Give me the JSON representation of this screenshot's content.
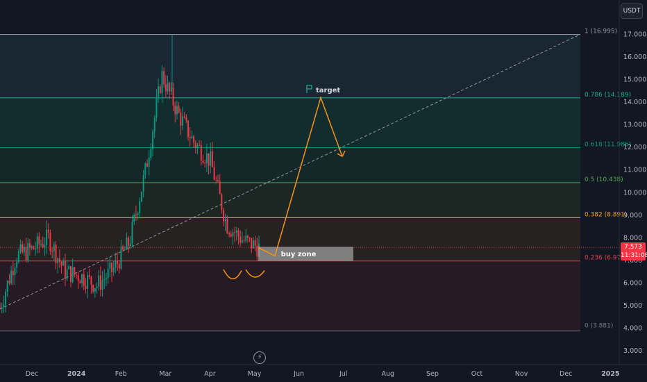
{
  "currency_button": "USDT",
  "price_badge": {
    "price": "7.573",
    "countdown": "11:31:08"
  },
  "colors": {
    "background": "#131722",
    "up": "#089981",
    "down": "#f23645",
    "arrow": "#f7931a",
    "buy_zone": "#9e9e9e"
  },
  "icons": {
    "flash": "lightning-icon",
    "flag": "flag-icon"
  },
  "annotations": {
    "target": "target",
    "buy_zone": "buy zone"
  },
  "chart_data": {
    "type": "candlestick",
    "symbol_quote": "USDT",
    "ylim": [
      2.6,
      18.2
    ],
    "y_ticks": [
      "3.000",
      "4.000",
      "5.000",
      "6.000",
      "7.000",
      "8.000",
      "9.000",
      "10.000",
      "11.000",
      "12.000",
      "13.000",
      "14.000",
      "15.000",
      "16.000",
      "17.000"
    ],
    "x_ticks": [
      "Dec",
      "2024",
      "Feb",
      "Mar",
      "Apr",
      "May",
      "Jun",
      "Jul",
      "Aug",
      "Sep",
      "Oct",
      "Nov",
      "Dec",
      "2025"
    ],
    "fib_levels": [
      {
        "label": "1 (16.995)",
        "value": 16.995,
        "color": "#9598a1"
      },
      {
        "label": "0.786 (14.189)",
        "value": 14.189,
        "color": "#22ab94"
      },
      {
        "label": "0.618 (11.986)",
        "value": 11.986,
        "color": "#089981"
      },
      {
        "label": "0.5 (10.438)",
        "value": 10.438,
        "color": "#4caf50"
      },
      {
        "label": "0.382 (8.891)",
        "value": 8.891,
        "color": "#f7a21b"
      },
      {
        "label": "0.236 (6.976)",
        "value": 6.976,
        "color": "#f23645"
      },
      {
        "label": "0 (3.881)",
        "value": 3.881,
        "color": "#787b86"
      }
    ],
    "current_price": 7.573,
    "series": [
      {
        "date": "late Nov 2023",
        "close": 4.9
      },
      {
        "date": "early Dec 2023",
        "close": 7.2
      },
      {
        "date": "mid Dec 2023",
        "close": 7.5
      },
      {
        "date": "late Dec 2023",
        "close": 8.0
      },
      {
        "date": "early Jan 2024",
        "close": 6.5
      },
      {
        "date": "mid Jan 2024",
        "close": 6.3
      },
      {
        "date": "late Jan 2024",
        "close": 5.9
      },
      {
        "date": "early Feb 2024",
        "close": 6.6
      },
      {
        "date": "mid Feb 2024",
        "close": 7.8
      },
      {
        "date": "late Feb 2024",
        "close": 11.0
      },
      {
        "date": "early Mar 2024",
        "close": 15.2
      },
      {
        "date": "mid Mar 2024",
        "close": 13.5
      },
      {
        "date": "late Mar 2024",
        "close": 12.2
      },
      {
        "date": "early Apr 2024",
        "close": 11.4
      },
      {
        "date": "mid Apr 2024",
        "close": 8.6
      },
      {
        "date": "late Apr 2024",
        "close": 7.9
      },
      {
        "date": "early May 2024",
        "close": 7.57
      }
    ],
    "projection": [
      {
        "date": "early May 2024",
        "value": 7.2
      },
      {
        "date": "mid Jun 2024",
        "value": 14.2
      },
      {
        "date": "early Jul 2024",
        "value": 11.6
      }
    ]
  }
}
